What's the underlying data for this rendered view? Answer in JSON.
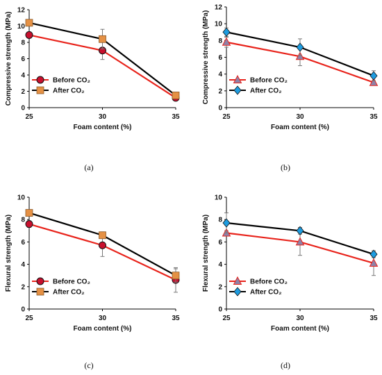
{
  "figure": {
    "panels": [
      "(a)",
      "(b)",
      "(c)",
      "(d)"
    ]
  },
  "chart_data": [
    {
      "type": "line",
      "panel": "(a)",
      "xlabel": "Foam content (%)",
      "ylabel": "Compressive strength (MPa)",
      "x": [
        25,
        30,
        35
      ],
      "xticks": [
        "25",
        "30",
        "35"
      ],
      "ylim": [
        0,
        12
      ],
      "yticks": [
        0,
        2,
        4,
        6,
        8,
        10,
        12
      ],
      "grid": false,
      "legend_placement": "bottom-left",
      "series": [
        {
          "name": "Before CO₂",
          "values": [
            8.9,
            7.0,
            1.2
          ],
          "err": [
            0.2,
            1.1,
            0.2
          ],
          "color": "#e8231b",
          "marker": "circle",
          "marker_fill": "#c8102e"
        },
        {
          "name": "After CO₂",
          "values": [
            10.4,
            8.4,
            1.5
          ],
          "err": [
            0.4,
            1.2,
            0.3
          ],
          "color": "#000000",
          "marker": "square",
          "marker_fill": "#e59145"
        }
      ]
    },
    {
      "type": "line",
      "panel": "(b)",
      "xlabel": "Foam content (%)",
      "ylabel": "Compressive strength (MPa)",
      "x": [
        25,
        30,
        35
      ],
      "xticks": [
        "25",
        "30",
        "35"
      ],
      "ylim": [
        0,
        12
      ],
      "yticks": [
        0,
        2,
        4,
        6,
        8,
        10,
        12
      ],
      "grid": false,
      "legend_placement": "bottom-left",
      "series": [
        {
          "name": "Before CO₂",
          "values": [
            7.8,
            6.1,
            3.0
          ],
          "err": [
            0.6,
            1.1,
            0.2
          ],
          "color": "#e8231b",
          "marker": "triangle",
          "marker_fill": "#8e82a8"
        },
        {
          "name": "After CO₂",
          "values": [
            9.0,
            7.2,
            3.8
          ],
          "err": [
            0.5,
            1.0,
            0.6
          ],
          "color": "#000000",
          "marker": "diamond",
          "marker_fill": "#1e9ce0"
        }
      ]
    },
    {
      "type": "line",
      "panel": "(c)",
      "xlabel": "Foam content (%)",
      "ylabel": "Flexural strength (MPa)",
      "x": [
        25,
        30,
        35
      ],
      "xticks": [
        "25",
        "30",
        "35"
      ],
      "ylim": [
        0,
        10
      ],
      "yticks": [
        0,
        2,
        4,
        6,
        8,
        10
      ],
      "grid": false,
      "legend_placement": "bottom-left",
      "series": [
        {
          "name": "Before CO₂",
          "values": [
            7.6,
            5.7,
            2.6
          ],
          "err": [
            0.3,
            1.0,
            1.1
          ],
          "color": "#e8231b",
          "marker": "circle",
          "marker_fill": "#c8102e"
        },
        {
          "name": "After CO₂",
          "values": [
            8.6,
            6.6,
            3.0
          ],
          "err": [
            0.2,
            0.3,
            0.6
          ],
          "color": "#000000",
          "marker": "square",
          "marker_fill": "#e59145"
        }
      ]
    },
    {
      "type": "line",
      "panel": "(d)",
      "xlabel": "Foam content (%)",
      "ylabel": "Flexural strength (MPa)",
      "x": [
        25,
        30,
        35
      ],
      "xticks": [
        "25",
        "30",
        "35"
      ],
      "ylim": [
        0,
        10
      ],
      "yticks": [
        0,
        2,
        4,
        6,
        8,
        10
      ],
      "grid": false,
      "legend_placement": "bottom-left",
      "series": [
        {
          "name": "Before CO₂",
          "values": [
            6.8,
            6.0,
            4.1
          ],
          "err": [
            0.2,
            1.2,
            1.1
          ],
          "color": "#e8231b",
          "marker": "triangle",
          "marker_fill": "#8e82a8"
        },
        {
          "name": "After CO₂",
          "values": [
            7.7,
            7.0,
            4.9
          ],
          "err": [
            0.9,
            0.3,
            0.3
          ],
          "color": "#000000",
          "marker": "diamond",
          "marker_fill": "#1e9ce0"
        }
      ]
    }
  ]
}
